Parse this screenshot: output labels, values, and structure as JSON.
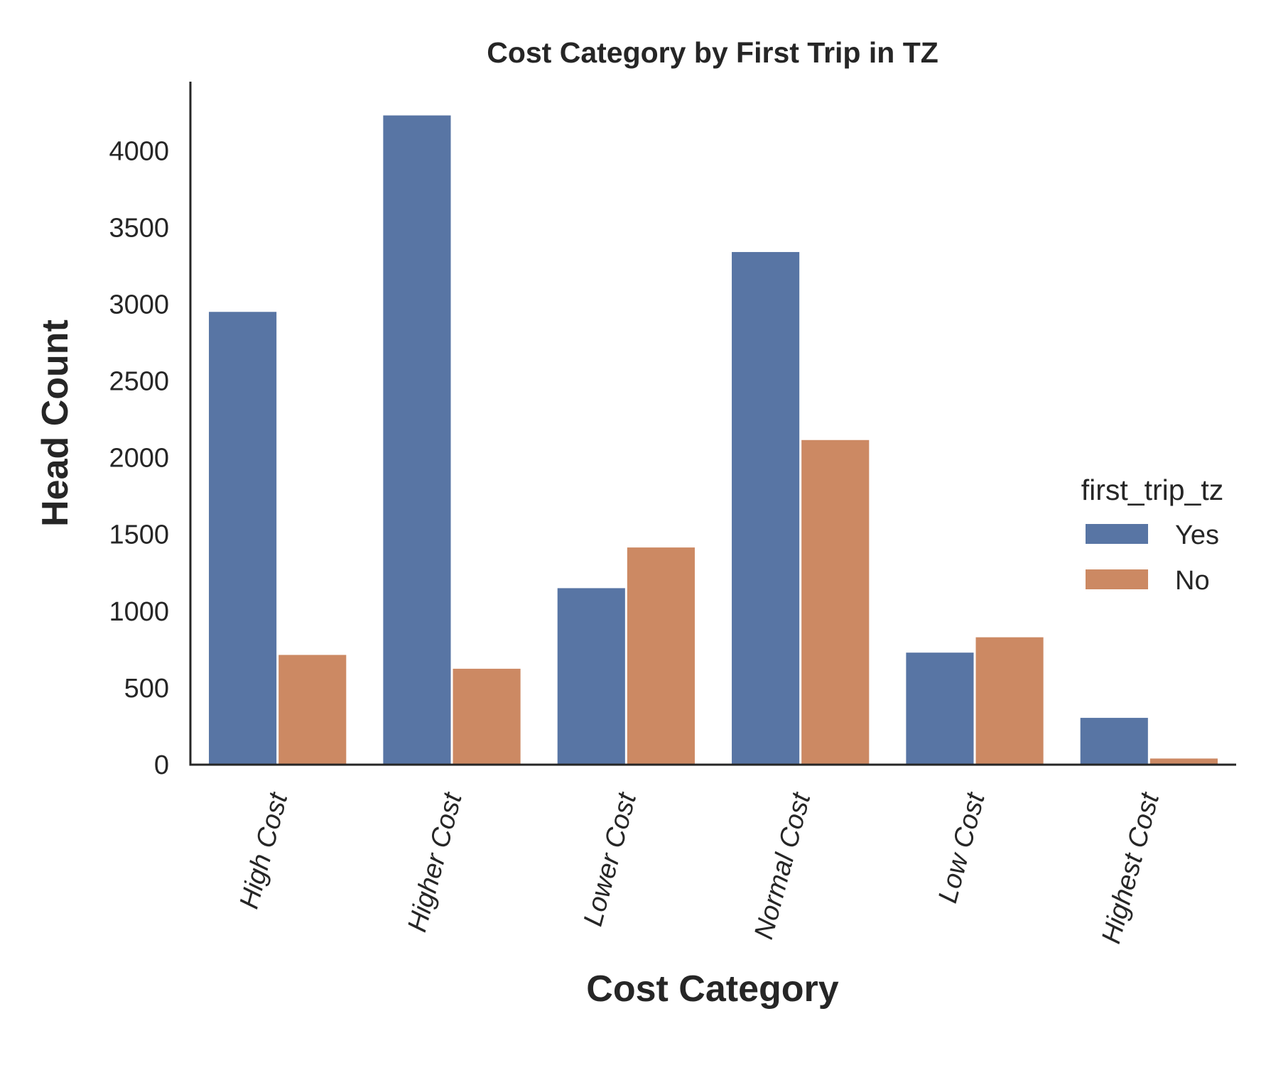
{
  "chart_data": {
    "type": "bar",
    "title": "Cost Category by First Trip in TZ",
    "xlabel": "Cost Category",
    "ylabel": "Head Count",
    "categories": [
      "High Cost",
      "Higher Cost",
      "Lower Cost",
      "Normal Cost",
      "Low Cost",
      "Highest Cost"
    ],
    "series": [
      {
        "name": "Yes",
        "color": "#5875a4",
        "values": [
          2950,
          4230,
          1150,
          3340,
          730,
          305
        ]
      },
      {
        "name": "No",
        "color": "#cc8963",
        "values": [
          715,
          625,
          1415,
          2115,
          830,
          40
        ]
      }
    ],
    "ylim": [
      0,
      4450
    ],
    "yticks": [
      0,
      500,
      1000,
      1500,
      2000,
      2500,
      3000,
      3500,
      4000
    ],
    "grid": false,
    "legend": {
      "title": "first_trip_tz",
      "placement": "right"
    }
  }
}
